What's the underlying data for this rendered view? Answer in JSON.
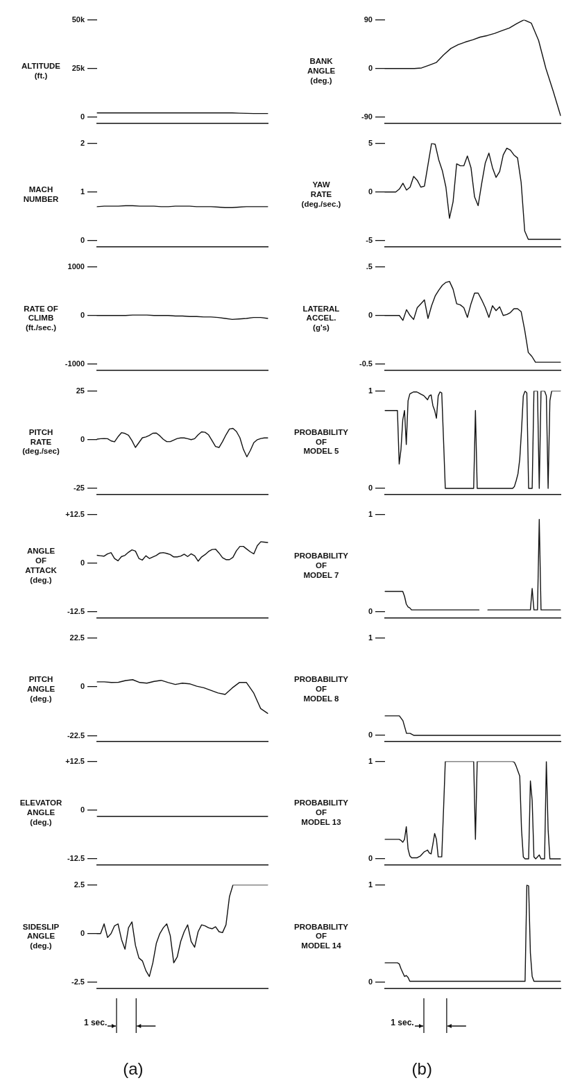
{
  "chart_data": [
    {
      "type": "line",
      "ylabel": "ALTITUDE\n(ft.)",
      "categories": [
        null,
        null,
        null,
        null,
        null,
        null,
        null,
        null,
        null,
        null,
        null,
        null,
        null,
        null,
        null,
        null,
        null,
        null,
        null,
        null,
        null,
        null,
        null,
        null,
        null
      ],
      "series": [
        {
          "color": "#111111",
          "values": [
            2200,
            2200,
            2200,
            2200,
            2200,
            2200,
            2200,
            2200,
            2200,
            2200,
            2200,
            2200,
            2200,
            2200,
            2200,
            2200,
            2200,
            2200,
            2200,
            2200,
            2100,
            2000,
            1900,
            1900,
            1900
          ]
        }
      ],
      "ylim": [
        -3000,
        50000
      ],
      "yticks": [
        0,
        {
          "value": 25000,
          "label": "25k"
        },
        {
          "value": 50000,
          "label": "50k"
        }
      ],
      "tick_labels": "y"
    },
    {
      "type": "line",
      "ylabel": "MACH\nNUMBER",
      "categories": [
        null,
        null,
        null,
        null,
        null,
        null,
        null,
        null,
        null,
        null,
        null,
        null,
        null,
        null,
        null,
        null,
        null,
        null,
        null,
        null,
        null,
        null,
        null,
        null,
        null
      ],
      "series": [
        {
          "color": "#111111",
          "values": [
            0.7,
            0.71,
            0.71,
            0.71,
            0.72,
            0.72,
            0.71,
            0.71,
            0.71,
            0.7,
            0.7,
            0.71,
            0.71,
            0.71,
            0.7,
            0.7,
            0.7,
            0.69,
            0.68,
            0.68,
            0.69,
            0.7,
            0.7,
            0.7,
            0.7
          ]
        }
      ],
      "ylim": [
        -0.12,
        2
      ],
      "yticks": [
        0,
        1,
        2
      ],
      "tick_labels": "y"
    },
    {
      "type": "line",
      "ylabel": "RATE OF\nCLIMB\n(ft./sec.)",
      "categories": [
        null,
        null,
        null,
        null,
        null,
        null,
        null,
        null,
        null,
        null,
        null,
        null,
        null,
        null,
        null,
        null,
        null,
        null,
        null,
        null,
        null,
        null,
        null,
        null,
        null
      ],
      "series": [
        {
          "color": "#111111",
          "values": [
            0,
            0,
            0,
            0,
            0,
            10,
            10,
            10,
            0,
            0,
            0,
            -10,
            -10,
            -20,
            -20,
            -30,
            -30,
            -40,
            -60,
            -80,
            -70,
            -60,
            -40,
            -40,
            -60
          ]
        }
      ],
      "ylim": [
        -1120,
        1000
      ],
      "yticks": [
        -1000,
        0,
        1000
      ],
      "tick_labels": "y"
    },
    {
      "type": "line",
      "ylabel": "PITCH\nRATE\n(deg./sec)",
      "categories": [
        null,
        null,
        null,
        null,
        null,
        null,
        null,
        null,
        null,
        null,
        null,
        null,
        null,
        null,
        null,
        null,
        null,
        null,
        null,
        null,
        null,
        null,
        null,
        null,
        null,
        null,
        null,
        null,
        null,
        null,
        null,
        null,
        null,
        null,
        null,
        null,
        null,
        null,
        null,
        null,
        null,
        null,
        null,
        null,
        null,
        null,
        null,
        null,
        null,
        null
      ],
      "series": [
        {
          "color": "#111111",
          "values": [
            0.3,
            0.5,
            0.6,
            0.5,
            -0.6,
            -1.1,
            1.5,
            3.6,
            3.2,
            2.3,
            -0.5,
            -4.0,
            -1.5,
            1.0,
            1.4,
            2.2,
            3.3,
            3.4,
            2.0,
            0.2,
            -1.0,
            -1.0,
            -0.2,
            0.6,
            0.9,
            0.9,
            0.5,
            0,
            0.5,
            2.5,
            4.0,
            3.8,
            2.5,
            -0.5,
            -3.5,
            -4.0,
            -1.0,
            2.5,
            5.5,
            5.8,
            4.2,
            1.0,
            -5.0,
            -8.8,
            -5.5,
            -1.5,
            0,
            0.6,
            0.9,
            0.9
          ]
        }
      ],
      "ylim": [
        -28,
        25
      ],
      "yticks": [
        -25,
        0,
        25
      ],
      "tick_labels": "y"
    },
    {
      "type": "line",
      "ylabel": "ANGLE\nOF\nATTACK\n(deg.)",
      "categories": [
        null,
        null,
        null,
        null,
        null,
        null,
        null,
        null,
        null,
        null,
        null,
        null,
        null,
        null,
        null,
        null,
        null,
        null,
        null,
        null,
        null,
        null,
        null,
        null,
        null,
        null,
        null,
        null,
        null,
        null,
        null,
        null,
        null,
        null,
        null,
        null,
        null,
        null,
        null,
        null,
        null,
        null,
        null,
        null,
        null,
        null,
        null,
        null,
        null,
        null
      ],
      "series": [
        {
          "color": "#111111",
          "values": [
            2.0,
            1.9,
            1.8,
            2.4,
            2.7,
            1.2,
            0.6,
            1.7,
            2.0,
            2.8,
            3.4,
            3.1,
            1.2,
            0.8,
            1.9,
            1.2,
            1.6,
            2.0,
            2.6,
            2.7,
            2.5,
            2.2,
            1.6,
            1.6,
            1.8,
            2.3,
            1.7,
            2.4,
            1.9,
            0.5,
            1.6,
            2.2,
            3.0,
            3.5,
            3.6,
            2.6,
            1.4,
            0.9,
            0.9,
            1.5,
            3.2,
            4.3,
            4.3,
            3.6,
            2.9,
            2.4,
            4.5,
            5.5,
            5.4,
            5.3
          ]
        }
      ],
      "ylim": [
        -14,
        12.5
      ],
      "yticks": [
        -12.5,
        0,
        {
          "value": 12.5,
          "label": "+12.5"
        }
      ],
      "tick_labels": "y"
    },
    {
      "type": "line",
      "ylabel": "PITCH\nANGLE\n(deg.)",
      "categories": [
        null,
        null,
        null,
        null,
        null,
        null,
        null,
        null,
        null,
        null,
        null,
        null,
        null,
        null,
        null,
        null,
        null,
        null,
        null,
        null,
        null,
        null,
        null,
        null,
        null
      ],
      "series": [
        {
          "color": "#111111",
          "values": [
            2.3,
            2.3,
            2.0,
            2.1,
            2.9,
            3.3,
            2.0,
            1.7,
            2.5,
            3.0,
            2.0,
            1.1,
            1.7,
            1.4,
            0.3,
            -0.4,
            -1.6,
            -2.8,
            -3.5,
            -0.5,
            2.0,
            2.0,
            -2.7,
            -10.0,
            -12.2
          ]
        }
      ],
      "ylim": [
        -25,
        22.5
      ],
      "yticks": [
        -22.5,
        0,
        22.5
      ],
      "tick_labels": "y"
    },
    {
      "type": "line",
      "ylabel": "ELEVATOR\nANGLE\n(deg.)",
      "categories": [
        null,
        null,
        null,
        null,
        null,
        null,
        null,
        null,
        null,
        null,
        null,
        null,
        null,
        null,
        null,
        null,
        null,
        null,
        null,
        null,
        null,
        null,
        null,
        null,
        null
      ],
      "series": [
        {
          "color": "#111111",
          "values": [
            -1.6,
            -1.6,
            -1.6,
            -1.6,
            -1.6,
            -1.6,
            -1.6,
            -1.6,
            -1.6,
            -1.6,
            -1.6,
            -1.6,
            -1.6,
            -1.6,
            -1.6,
            -1.6,
            -1.6,
            -1.6,
            -1.6,
            -1.6,
            -1.6,
            -1.6,
            -1.6,
            -1.6,
            -1.6
          ]
        }
      ],
      "ylim": [
        -14,
        12.5
      ],
      "yticks": [
        -12.5,
        0,
        {
          "value": 12.5,
          "label": "+12.5"
        }
      ],
      "tick_labels": "y"
    },
    {
      "type": "line",
      "ylabel": "SIDESLIP\nANGLE\n(deg.)",
      "categories": [
        null,
        null,
        null,
        null,
        null,
        null,
        null,
        null,
        null,
        null,
        null,
        null,
        null,
        null,
        null,
        null,
        null,
        null,
        null,
        null,
        null,
        null,
        null,
        null,
        null,
        null,
        null,
        null,
        null,
        null,
        null,
        null,
        null,
        null,
        null,
        null,
        null,
        null,
        null,
        null,
        null,
        null,
        null,
        null,
        null,
        null,
        null,
        null,
        null,
        null
      ],
      "series": [
        {
          "color": "#111111",
          "values": [
            0,
            0,
            0.5,
            -0.2,
            0,
            0.4,
            0.5,
            -0.3,
            -0.8,
            0.3,
            0.6,
            -0.6,
            -1.25,
            -1.4,
            -1.9,
            -2.2,
            -1.5,
            -0.5,
            0,
            0.3,
            0.5,
            -0.1,
            -1.5,
            -1.2,
            -0.4,
            0.1,
            0.45,
            -0.4,
            -0.7,
            0.1,
            0.45,
            0.4,
            0.3,
            0.25,
            0.35,
            0.1,
            0.05,
            0.45,
            1.9,
            2.5,
            2.5,
            2.5,
            2.5,
            2.5,
            2.5,
            2.5,
            2.5,
            2.5,
            2.5,
            2.5
          ]
        }
      ],
      "ylim": [
        -2.8,
        2.5
      ],
      "yticks": [
        -2.5,
        0,
        2.5
      ],
      "tick_labels": "y",
      "annotations": [
        "1 sec.",
        "(a)"
      ]
    },
    {
      "type": "line",
      "ylabel": "BANK\nANGLE\n(deg.)",
      "categories": [
        null,
        null,
        null,
        null,
        null,
        null,
        null,
        null,
        null,
        null,
        null,
        null,
        null,
        null,
        null,
        null,
        null,
        null,
        null,
        null,
        null,
        null,
        null,
        null,
        null
      ],
      "series": [
        {
          "color": "#111111",
          "values": [
            0,
            0,
            0,
            0,
            0,
            1,
            6,
            11,
            25,
            37,
            44,
            49,
            53,
            58,
            61,
            65,
            70,
            75,
            83,
            90,
            84,
            52,
            0,
            -42,
            -87
          ]
        }
      ],
      "ylim": [
        -101,
        90
      ],
      "yticks": [
        -90,
        0,
        90
      ],
      "tick_labels": "y"
    },
    {
      "type": "line",
      "ylabel": "YAW\nRATE\n(deg./sec.)",
      "categories": [
        null,
        null,
        null,
        null,
        null,
        null,
        null,
        null,
        null,
        null,
        null,
        null,
        null,
        null,
        null,
        null,
        null,
        null,
        null,
        null,
        null,
        null,
        null,
        null,
        null,
        null,
        null,
        null,
        null,
        null,
        null,
        null,
        null,
        null,
        null,
        null,
        null,
        null,
        null,
        null,
        null,
        null,
        null,
        null,
        null,
        null,
        null,
        null,
        null,
        null
      ],
      "series": [
        {
          "color": "#111111",
          "values": [
            0,
            0,
            0,
            0,
            0.3,
            0.9,
            0.2,
            0.5,
            1.6,
            1.2,
            0.5,
            0.6,
            2.8,
            5.0,
            4.9,
            3.3,
            2.2,
            0.5,
            -2.7,
            -1.0,
            2.9,
            2.7,
            2.7,
            3.7,
            2.5,
            -0.5,
            -1.4,
            0.9,
            3.0,
            4.0,
            2.5,
            1.5,
            2.1,
            3.8,
            4.5,
            4.3,
            3.8,
            3.5,
            1.0,
            -4.0,
            -4.86,
            -4.86,
            -4.86,
            -4.86,
            -4.86,
            -4.86,
            -4.86,
            -4.86,
            -4.86,
            -4.86
          ]
        }
      ],
      "ylim": [
        -5.6,
        5
      ],
      "yticks": [
        -5,
        0,
        5
      ],
      "tick_labels": "y"
    },
    {
      "type": "line",
      "ylabel": "LATERAL\nACCEL.\n(g's)",
      "categories": [
        null,
        null,
        null,
        null,
        null,
        null,
        null,
        null,
        null,
        null,
        null,
        null,
        null,
        null,
        null,
        null,
        null,
        null,
        null,
        null,
        null,
        null,
        null,
        null,
        null,
        null,
        null,
        null,
        null,
        null,
        null,
        null,
        null,
        null,
        null,
        null,
        null,
        null,
        null,
        null,
        null,
        null,
        null,
        null,
        null,
        null,
        null,
        null,
        null,
        null
      ],
      "series": [
        {
          "color": "#111111",
          "values": [
            0,
            0,
            0,
            0,
            0,
            -0.05,
            0.06,
            0,
            -0.04,
            0.08,
            0.12,
            0.16,
            -0.03,
            0.1,
            0.2,
            0.26,
            0.31,
            0.34,
            0.35,
            0.27,
            0.12,
            0.11,
            0.08,
            -0.02,
            0.12,
            0.23,
            0.23,
            0.16,
            0.08,
            -0.02,
            0.1,
            0.05,
            0.09,
            0,
            0.01,
            0.03,
            0.07,
            0.07,
            0.04,
            -0.15,
            -0.38,
            -0.42,
            -0.48,
            -0.48,
            -0.48,
            -0.48,
            -0.48,
            -0.48,
            -0.48,
            -0.48
          ]
        }
      ],
      "ylim": [
        -0.56,
        0.5
      ],
      "yticks": [
        -0.5,
        0,
        {
          "value": 0.5,
          "label": ".5"
        }
      ],
      "tick_labels": "y"
    },
    {
      "type": "line",
      "ylabel": "PROBABILITY\nOF\nMODEL 5",
      "categories": [
        null,
        null,
        null,
        null,
        null,
        null,
        null,
        null,
        null,
        null,
        null,
        null,
        null,
        null,
        null,
        null,
        null,
        null,
        null,
        null,
        null,
        null,
        null,
        null,
        null,
        null,
        null,
        null,
        null,
        null,
        null,
        null,
        null,
        null,
        null,
        null,
        null,
        null,
        null,
        null,
        null,
        null,
        null,
        null,
        null,
        null,
        null,
        null,
        null,
        null,
        null,
        null,
        null,
        null,
        null,
        null,
        null,
        null,
        null,
        null,
        null,
        null,
        null,
        null,
        null,
        null,
        null,
        null,
        null,
        null,
        null,
        null,
        null,
        null,
        null,
        null,
        null,
        null,
        null,
        null,
        null,
        null,
        null,
        null,
        null,
        null,
        null,
        null,
        null,
        null,
        null,
        null,
        null,
        null,
        null,
        null,
        null,
        null,
        null,
        null
      ],
      "series": [
        {
          "color": "#111111",
          "values": [
            0.8,
            0.8,
            0.8,
            0.8,
            0.8,
            0.8,
            0.8,
            0.8,
            0.25,
            0.4,
            0.7,
            0.8,
            0.45,
            0.9,
            0.97,
            0.98,
            0.99,
            0.99,
            0.99,
            0.98,
            0.97,
            0.96,
            0.95,
            0.93,
            0.91,
            0.95,
            0.96,
            0.85,
            0.8,
            0.72,
            0.95,
            0.99,
            0.98,
            0.5,
            0,
            0,
            0,
            0,
            0,
            0,
            0,
            0,
            0,
            0,
            0,
            0,
            0,
            0,
            0,
            0,
            0,
            0.8,
            0,
            0,
            0,
            0,
            0,
            0,
            0,
            0,
            0,
            0,
            0,
            0,
            0,
            0,
            0,
            0,
            0,
            0,
            0,
            0,
            0,
            0.02,
            0.08,
            0.15,
            0.3,
            0.6,
            0.95,
            1,
            0.98,
            0,
            0,
            0,
            1,
            1,
            1,
            0,
            1,
            1,
            1,
            0.95,
            0,
            0.9,
            1,
            1,
            1,
            1,
            1,
            1
          ]
        }
      ],
      "ylim": [
        -0.06,
        1
      ],
      "yticks": [
        0,
        1
      ],
      "tick_labels": "y"
    },
    {
      "type": "line",
      "ylabel": "PROBABILITY\nOF\nMODEL 7",
      "categories": [
        null,
        null,
        null,
        null,
        null,
        null,
        null,
        null,
        null,
        null,
        null,
        null,
        null,
        null,
        null,
        null,
        null,
        null,
        null,
        null,
        null,
        null,
        null,
        null,
        null,
        null,
        null,
        null,
        null,
        null,
        null,
        null,
        null,
        null,
        null,
        null,
        null,
        null,
        null,
        null,
        null,
        null,
        null,
        null,
        null,
        null,
        null,
        null,
        null,
        null,
        null,
        null,
        null,
        null,
        null,
        null,
        null,
        null,
        null,
        null,
        null,
        null,
        null,
        null,
        null,
        null,
        null,
        null,
        null,
        null,
        null,
        null,
        null,
        null,
        null,
        null,
        null,
        null,
        null,
        null,
        null,
        null,
        null,
        null,
        null,
        null,
        null,
        null,
        null,
        null,
        null,
        null,
        null,
        null,
        null,
        null,
        null,
        null,
        null,
        null
      ],
      "series": [
        {
          "color": "#111111",
          "values": [
            0.21,
            0.21,
            0.21,
            0.21,
            0.21,
            0.21,
            0.21,
            0.21,
            0.21,
            0.21,
            0.21,
            0.16,
            0.08,
            0.05,
            0.04,
            0.02,
            0.02,
            0.02,
            0.02,
            0.02,
            0.02,
            0.02,
            0.02,
            0.02,
            0.02,
            0.02,
            0.02,
            0.02,
            0.02,
            0.02,
            0.02,
            0.02,
            0.02,
            0.02,
            0.02,
            0.02,
            0.02,
            0.02,
            0.02,
            0.02,
            0.02,
            0.02,
            0.02,
            0.02,
            0.02,
            0.02,
            0.02,
            0.02,
            0.02,
            0.02,
            0.02,
            0.02,
            0.02,
            0.02,
            null,
            null,
            null,
            null,
            0.02,
            0.02,
            0.02,
            0.02,
            0.02,
            0.02,
            0.02,
            0.02,
            0.02,
            0.02,
            0.02,
            0.02,
            0.02,
            0.02,
            0.02,
            0.02,
            0.02,
            0.02,
            0.02,
            0.02,
            0.02,
            0.02,
            0.02,
            0.02,
            0.02,
            0.24,
            0.02,
            0.02,
            0.02,
            0.95,
            0.02,
            0.02,
            0.02,
            0.02,
            0.02,
            0.02,
            0.02,
            0.02,
            0.02,
            0.02,
            0.02,
            0.02
          ]
        }
      ],
      "ylim": [
        -0.06,
        1
      ],
      "yticks": [
        0,
        1
      ],
      "tick_labels": "y"
    },
    {
      "type": "line",
      "ylabel": "PROBABILITY\nOF\nMODEL 8",
      "categories": [
        null,
        null,
        null,
        null,
        null,
        null,
        null,
        null,
        null,
        null,
        null,
        null,
        null,
        null,
        null,
        null,
        null,
        null,
        null,
        null,
        null,
        null,
        null,
        null,
        null,
        null,
        null,
        null,
        null,
        null,
        null,
        null,
        null,
        null,
        null,
        null,
        null,
        null,
        null,
        null,
        null,
        null,
        null,
        null,
        null,
        null,
        null,
        null,
        null,
        null
      ],
      "series": [
        {
          "color": "#111111",
          "values": [
            0.2,
            0.2,
            0.2,
            0.2,
            0.2,
            0.15,
            0.02,
            0.02,
            0,
            0,
            0,
            0,
            0,
            0,
            0,
            0,
            0,
            0,
            0,
            0,
            0,
            0,
            0,
            0,
            0,
            0,
            0,
            0,
            0,
            0,
            0,
            0,
            0,
            0,
            0,
            0,
            0,
            0,
            0,
            0,
            0,
            0,
            0,
            0,
            0,
            0,
            0,
            0,
            0,
            0
          ]
        }
      ],
      "ylim": [
        -0.06,
        1
      ],
      "yticks": [
        0,
        1
      ],
      "tick_labels": "y"
    },
    {
      "type": "line",
      "ylabel": "PROBABILITY\nOF\nMODEL 13",
      "categories": [
        null,
        null,
        null,
        null,
        null,
        null,
        null,
        null,
        null,
        null,
        null,
        null,
        null,
        null,
        null,
        null,
        null,
        null,
        null,
        null,
        null,
        null,
        null,
        null,
        null,
        null,
        null,
        null,
        null,
        null,
        null,
        null,
        null,
        null,
        null,
        null,
        null,
        null,
        null,
        null,
        null,
        null,
        null,
        null,
        null,
        null,
        null,
        null,
        null,
        null,
        null,
        null,
        null,
        null,
        null,
        null,
        null,
        null,
        null,
        null,
        null,
        null,
        null,
        null,
        null,
        null,
        null,
        null,
        null,
        null,
        null,
        null,
        null,
        null,
        null,
        null,
        null,
        null,
        null,
        null,
        null,
        null,
        null,
        null,
        null,
        null,
        null,
        null,
        null,
        null,
        null,
        null,
        null,
        null,
        null,
        null,
        null,
        null,
        null,
        null
      ],
      "series": [
        {
          "color": "#111111",
          "values": [
            0.2,
            0.2,
            0.2,
            0.2,
            0.2,
            0.2,
            0.2,
            0.2,
            0.2,
            0.19,
            0.17,
            0.2,
            0.33,
            0.1,
            0.03,
            0.01,
            0.01,
            0.01,
            0.01,
            0.02,
            0.03,
            0.05,
            0.07,
            0.08,
            0.09,
            0.06,
            0.05,
            0.15,
            0.26,
            0.2,
            0.02,
            0.02,
            0.02,
            0.5,
            1,
            1,
            1,
            1,
            1,
            1,
            1,
            1,
            1,
            1,
            1,
            1,
            1,
            1,
            1,
            1,
            1,
            0.2,
            1,
            1,
            1,
            1,
            1,
            1,
            1,
            1,
            1,
            1,
            1,
            1,
            1,
            1,
            1,
            1,
            1,
            1,
            1,
            1,
            1,
            0.99,
            0.95,
            0.9,
            0.85,
            0.3,
            0.02,
            0,
            0,
            0,
            0.8,
            0.6,
            0.02,
            0,
            0.02,
            0.04,
            0,
            0,
            0,
            1,
            0.3,
            0,
            0,
            0,
            0,
            0,
            0,
            0
          ]
        }
      ],
      "ylim": [
        -0.06,
        1
      ],
      "yticks": [
        0,
        1
      ],
      "tick_labels": "y"
    },
    {
      "type": "line",
      "ylabel": "PROBABILITY\nOF\nMODEL 14",
      "categories": [
        null,
        null,
        null,
        null,
        null,
        null,
        null,
        null,
        null,
        null,
        null,
        null,
        null,
        null,
        null,
        null,
        null,
        null,
        null,
        null,
        null,
        null,
        null,
        null,
        null,
        null,
        null,
        null,
        null,
        null,
        null,
        null,
        null,
        null,
        null,
        null,
        null,
        null,
        null,
        null,
        null,
        null,
        null,
        null,
        null,
        null,
        null,
        null,
        null,
        null,
        null,
        null,
        null,
        null,
        null,
        null,
        null,
        null,
        null,
        null,
        null,
        null,
        null,
        null,
        null,
        null,
        null,
        null,
        null,
        null,
        null,
        null,
        null,
        null,
        null,
        null,
        null,
        null,
        null,
        null,
        null,
        null,
        null,
        null,
        null,
        null,
        null,
        null,
        null,
        null,
        null,
        null,
        null,
        null,
        null,
        null,
        null,
        null,
        null,
        null
      ],
      "series": [
        {
          "color": "#111111",
          "values": [
            0.2,
            0.2,
            0.2,
            0.2,
            0.2,
            0.2,
            0.2,
            0.2,
            0.19,
            0.14,
            0.1,
            0.06,
            0.07,
            0.05,
            0.01,
            0.01,
            0.01,
            0.01,
            0.01,
            0.01,
            0.01,
            0.01,
            0.01,
            0.01,
            0.01,
            0.01,
            0.01,
            0.01,
            0.01,
            0.01,
            0.01,
            0.01,
            0.01,
            0.01,
            0.01,
            0.01,
            0.01,
            0.01,
            0.01,
            0.01,
            0.01,
            0.01,
            0.01,
            0.01,
            0.01,
            0.01,
            0.01,
            0.01,
            0.01,
            0.01,
            0.01,
            0.01,
            0.01,
            0.01,
            0.01,
            0.01,
            0.01,
            0.01,
            0.01,
            0.01,
            0.01,
            0.01,
            0.01,
            0.01,
            0.01,
            0.01,
            0.01,
            0.01,
            0.01,
            0.01,
            0.01,
            0.01,
            0.01,
            0.01,
            0.01,
            0.01,
            0.01,
            0.01,
            0.01,
            0.01,
            1,
            0.99,
            0.3,
            0.06,
            0.01,
            0.01,
            0.01,
            0.01,
            0.01,
            0.01,
            0.01,
            0.01,
            0.01,
            0.01,
            0.01,
            0.01,
            0.01,
            0.01,
            0.01,
            0.01
          ]
        }
      ],
      "ylim": [
        -0.06,
        1
      ],
      "yticks": [
        0,
        1
      ],
      "tick_labels": "y",
      "annotations": [
        "1 sec.",
        "(b)"
      ]
    }
  ]
}
